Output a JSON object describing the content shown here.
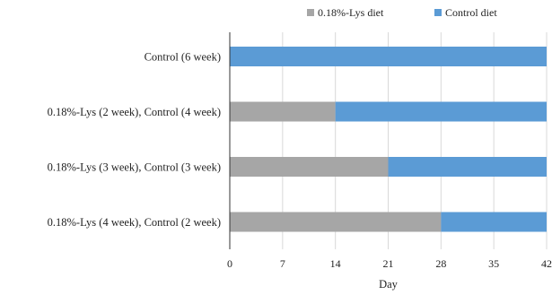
{
  "chart_data": {
    "type": "bar",
    "orientation": "horizontal",
    "stacked": true,
    "categories": [
      "Control (6 week)",
      "0.18%-Lys (2 week), Control (4 week)",
      "0.18%-Lys (3 week), Control (3 week)",
      "0.18%-Lys (4 week), Control (2 week)"
    ],
    "series": [
      {
        "name": "0.18%-Lys diet",
        "color": "#a6a6a6",
        "values": [
          0,
          14,
          21,
          28
        ]
      },
      {
        "name": "Control diet",
        "color": "#5b9bd5",
        "values": [
          42,
          28,
          21,
          14
        ]
      }
    ],
    "xlabel": "Day",
    "xlim": [
      0,
      42
    ],
    "xticks": [
      0,
      7,
      14,
      21,
      28,
      35,
      42
    ],
    "grid": true,
    "legend": "top-right"
  }
}
